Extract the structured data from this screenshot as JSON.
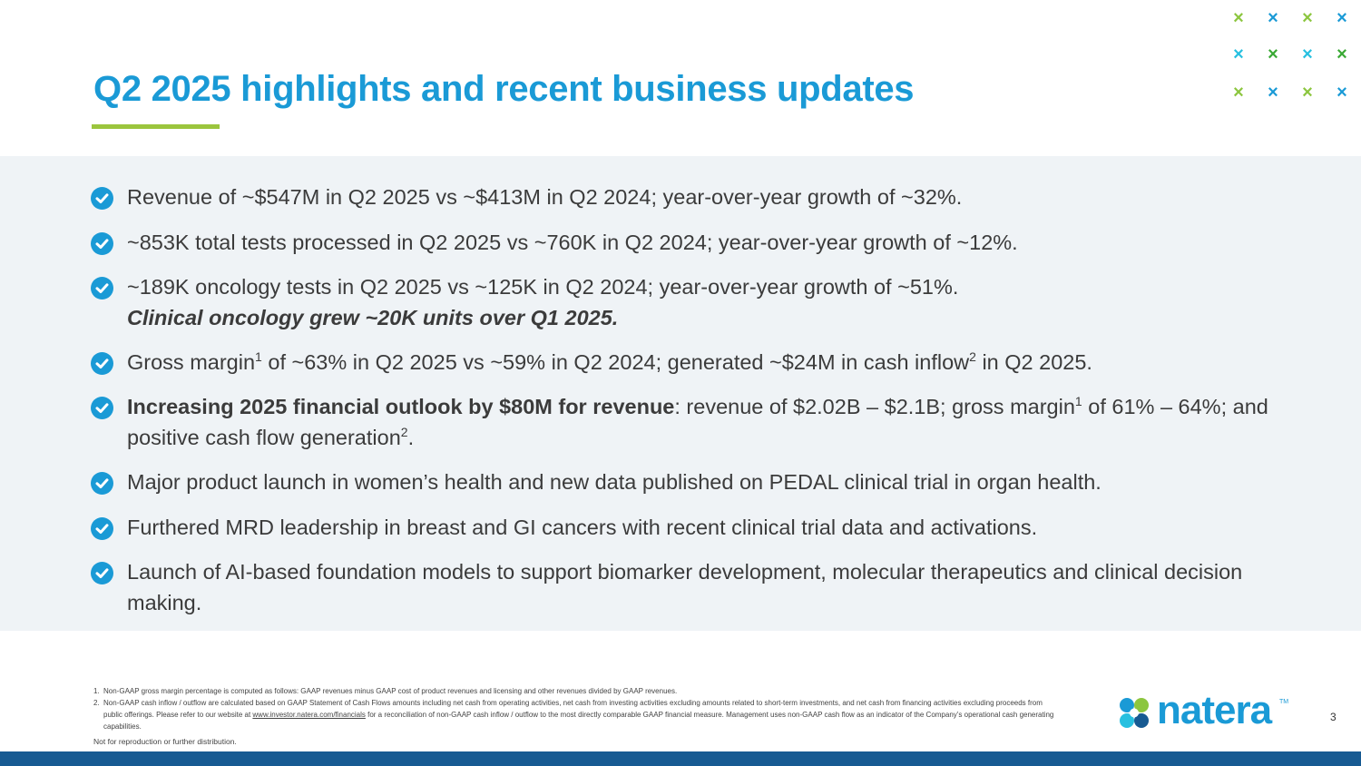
{
  "slide": {
    "title": "Q2 2025 highlights and recent business updates",
    "page_number": "3",
    "colors": {
      "title_blue": "#1a9ad6",
      "accent_green": "#9bc53d",
      "panel_bg": "#eff3f6",
      "footer_navy": "#175a92"
    }
  },
  "decor": {
    "x_glyph": "×",
    "x_colors": [
      [
        "#8cc63f",
        "#1a9ad6",
        "#8cc63f",
        "#1a9ad6"
      ],
      [
        "#27c0e0",
        "#3aa935",
        "#27c0e0",
        "#3aa935"
      ],
      [
        "#8cc63f",
        "#1a9ad6",
        "#8cc63f",
        "#1a9ad6"
      ]
    ]
  },
  "bullets": [
    {
      "text": "Revenue of ~$547M in Q2 2025 vs ~$413M in Q2 2024; year-over-year growth of ~32%."
    },
    {
      "text": "~853K total tests processed in Q2 2025 vs ~760K in Q2 2024; year-over-year growth of ~12%."
    },
    {
      "text": "~189K oncology tests in Q2 2025 vs ~125K in Q2 2024; year-over-year growth of ~51%.",
      "emphasis": "Clinical oncology grew ~20K units over Q1 2025."
    },
    {
      "part1": "Gross margin",
      "sup1": "1",
      "part2": " of ~63% in Q2 2025 vs ~59% in Q2 2024; generated ~$24M in cash inflow",
      "sup2": "2",
      "part3": " in Q2 2025."
    },
    {
      "bold": "Increasing 2025 financial outlook by $80M for revenue",
      "part1": ": revenue of $2.02B – $2.1B; gross margin",
      "sup1": "1",
      "part2": " of 61% – 64%; and positive cash flow generation",
      "sup2": "2",
      "part3": "."
    },
    {
      "text": "Major product launch in women’s health and new data published on PEDAL clinical trial in organ health."
    },
    {
      "text": "Furthered MRD leadership in breast and GI cancers with recent clinical trial data and activations."
    },
    {
      "text": "Launch of AI-based foundation models to support biomarker development, molecular therapeutics and clinical decision making."
    }
  ],
  "footnotes": [
    {
      "num": "1.",
      "text": "Non-GAAP gross margin percentage is computed as follows: GAAP revenues minus GAAP cost of product revenues and licensing and other revenues divided by GAAP revenues."
    },
    {
      "num": "2.",
      "text_before": "Non-GAAP cash inflow / outflow are calculated based on GAAP Statement of Cash Flows amounts including net cash from operating activities, net cash from investing activities excluding amounts related to short-term investments, and net cash from financing activities excluding proceeds from public offerings. Please refer to our website at ",
      "link": "www.investor.natera.com/financials",
      "text_after": " for a reconciliation of non-GAAP cash inflow / outflow to the most directly comparable GAAP financial measure. Management uses non-GAAP cash flow as an indicator of the Company’s operational cash generating capabilities."
    }
  ],
  "disclaimer": "Not for reproduction or further distribution.",
  "logo": {
    "wordmark": "natera",
    "tm": "TM",
    "mark_colors": [
      "#1a9ad6",
      "#8cc63f",
      "#27c0e0",
      "#175a92"
    ]
  }
}
